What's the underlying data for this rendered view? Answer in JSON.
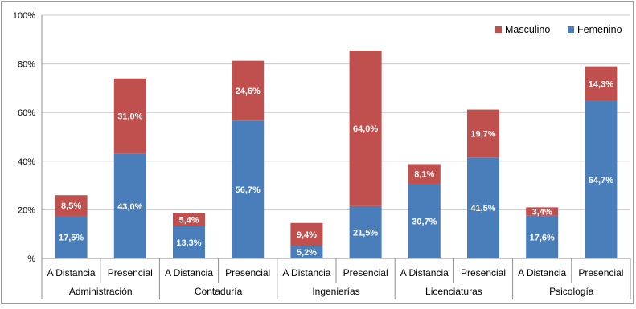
{
  "chart_data": {
    "type": "bar",
    "stacked": true,
    "categories": [
      "A Distancia",
      "Presencial",
      "A Distancia",
      "Presencial",
      "A Distancia",
      "Presencial",
      "A Distancia",
      "Presencial",
      "A Distancia",
      "Presencial"
    ],
    "groups": [
      {
        "label": "Administración",
        "categories": [
          "A Distancia",
          "Presencial"
        ]
      },
      {
        "label": "Contaduría",
        "categories": [
          "A Distancia",
          "Presencial"
        ]
      },
      {
        "label": "Ingenierías",
        "categories": [
          "A Distancia",
          "Presencial"
        ]
      },
      {
        "label": "Licenciaturas",
        "categories": [
          "A Distancia",
          "Presencial"
        ]
      },
      {
        "label": "Psicología",
        "categories": [
          "A Distancia",
          "Presencial"
        ]
      }
    ],
    "series": [
      {
        "name": "Femenino",
        "color": "#4a7ebb",
        "values": [
          17.5,
          43.0,
          13.3,
          56.7,
          5.2,
          21.5,
          30.7,
          41.5,
          17.6,
          64.7
        ],
        "labels": [
          "17,5%",
          "43,0%",
          "13,3%",
          "56,7%",
          "5,2%",
          "21,5%",
          "30,7%",
          "41,5%",
          "17,6%",
          "64,7%"
        ]
      },
      {
        "name": "Masculino",
        "color": "#c0504d",
        "values": [
          8.5,
          31.0,
          5.4,
          24.6,
          9.4,
          64.0,
          8.1,
          19.7,
          3.4,
          14.3
        ],
        "labels": [
          "8,5%",
          "31,0%",
          "5,4%",
          "24,6%",
          "9,4%",
          "64,0%",
          "8,1%",
          "19,7%",
          "3,4%",
          "14,3%"
        ]
      }
    ],
    "ylim": [
      0,
      100
    ],
    "yticks": [
      0,
      20,
      40,
      60,
      80,
      100
    ],
    "ytick_labels": [
      "%",
      "20%",
      "40%",
      "60%",
      "80%",
      "100%"
    ],
    "legend_order": [
      "Masculino",
      "Femenino"
    ],
    "legend_position": "top-right",
    "grid": true
  }
}
